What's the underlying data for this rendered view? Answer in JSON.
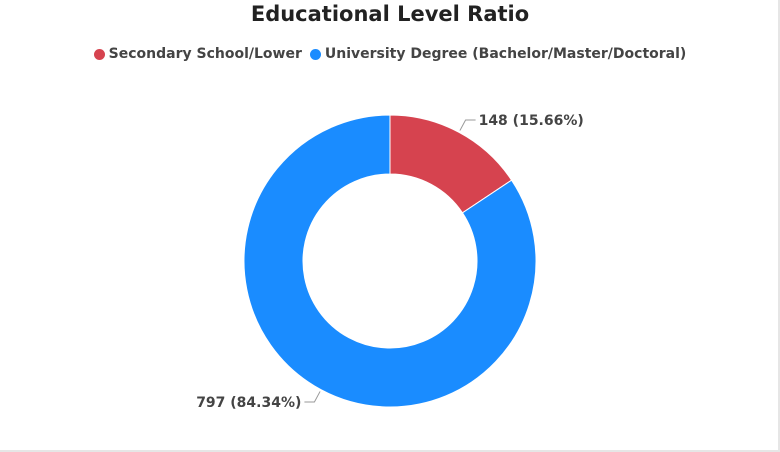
{
  "chart_data": {
    "type": "pie",
    "variant": "donut",
    "title": "Educational Level Ratio",
    "legend_position": "top",
    "slices": [
      {
        "name": "Secondary School/Lower",
        "value": 148,
        "percent": 15.66,
        "label": "148 (15.66%)",
        "color": "#d6434f"
      },
      {
        "name": "University Degree (Bachelor/Master/Doctoral)",
        "value": 797,
        "percent": 84.34,
        "label": "797 (84.34%)",
        "color": "#1a8cff"
      }
    ]
  }
}
